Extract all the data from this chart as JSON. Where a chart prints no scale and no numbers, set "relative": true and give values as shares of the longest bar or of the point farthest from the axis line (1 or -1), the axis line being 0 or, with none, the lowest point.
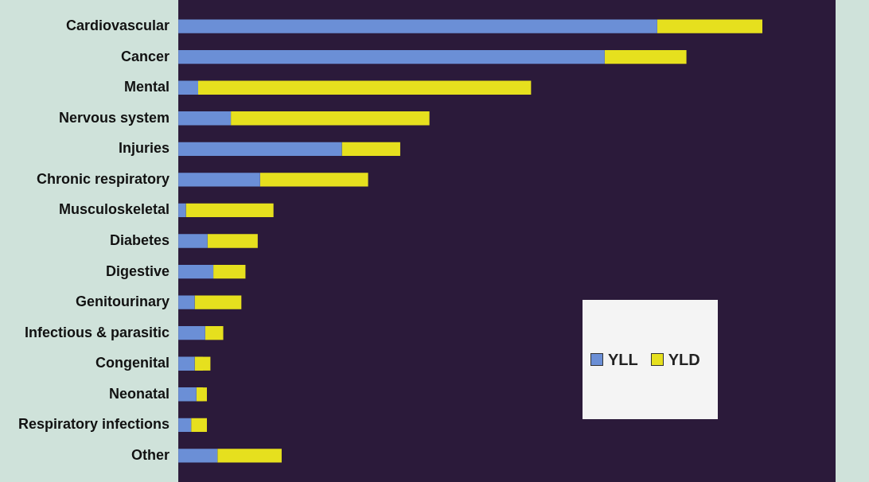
{
  "chart_data": {
    "type": "bar",
    "orientation": "horizontal",
    "stacked": true,
    "relative": true,
    "legend": "bottom right",
    "categories": [
      "Cardiovascular",
      "Cancer",
      "Mental",
      "Nervous system",
      "Injuries",
      "Chronic respiratory",
      "Musculoskeletal",
      "Diabetes",
      "Digestive",
      "Genitourinary",
      "Infectious & parasitic",
      "Congenital",
      "Neonatal",
      "Respiratory infections",
      "Other"
    ],
    "series": [
      {
        "name": "YLL",
        "color": "#6b8fd6",
        "values": [
          0.82,
          0.73,
          0.034,
          0.09,
          0.28,
          0.14,
          0.013,
          0.05,
          0.06,
          0.028,
          0.046,
          0.028,
          0.031,
          0.022,
          0.067
        ]
      },
      {
        "name": "YLD",
        "color": "#e6e01e",
        "values": [
          0.18,
          0.14,
          0.57,
          0.34,
          0.1,
          0.185,
          0.15,
          0.086,
          0.055,
          0.08,
          0.031,
          0.027,
          0.018,
          0.027,
          0.11
        ]
      }
    ]
  }
}
